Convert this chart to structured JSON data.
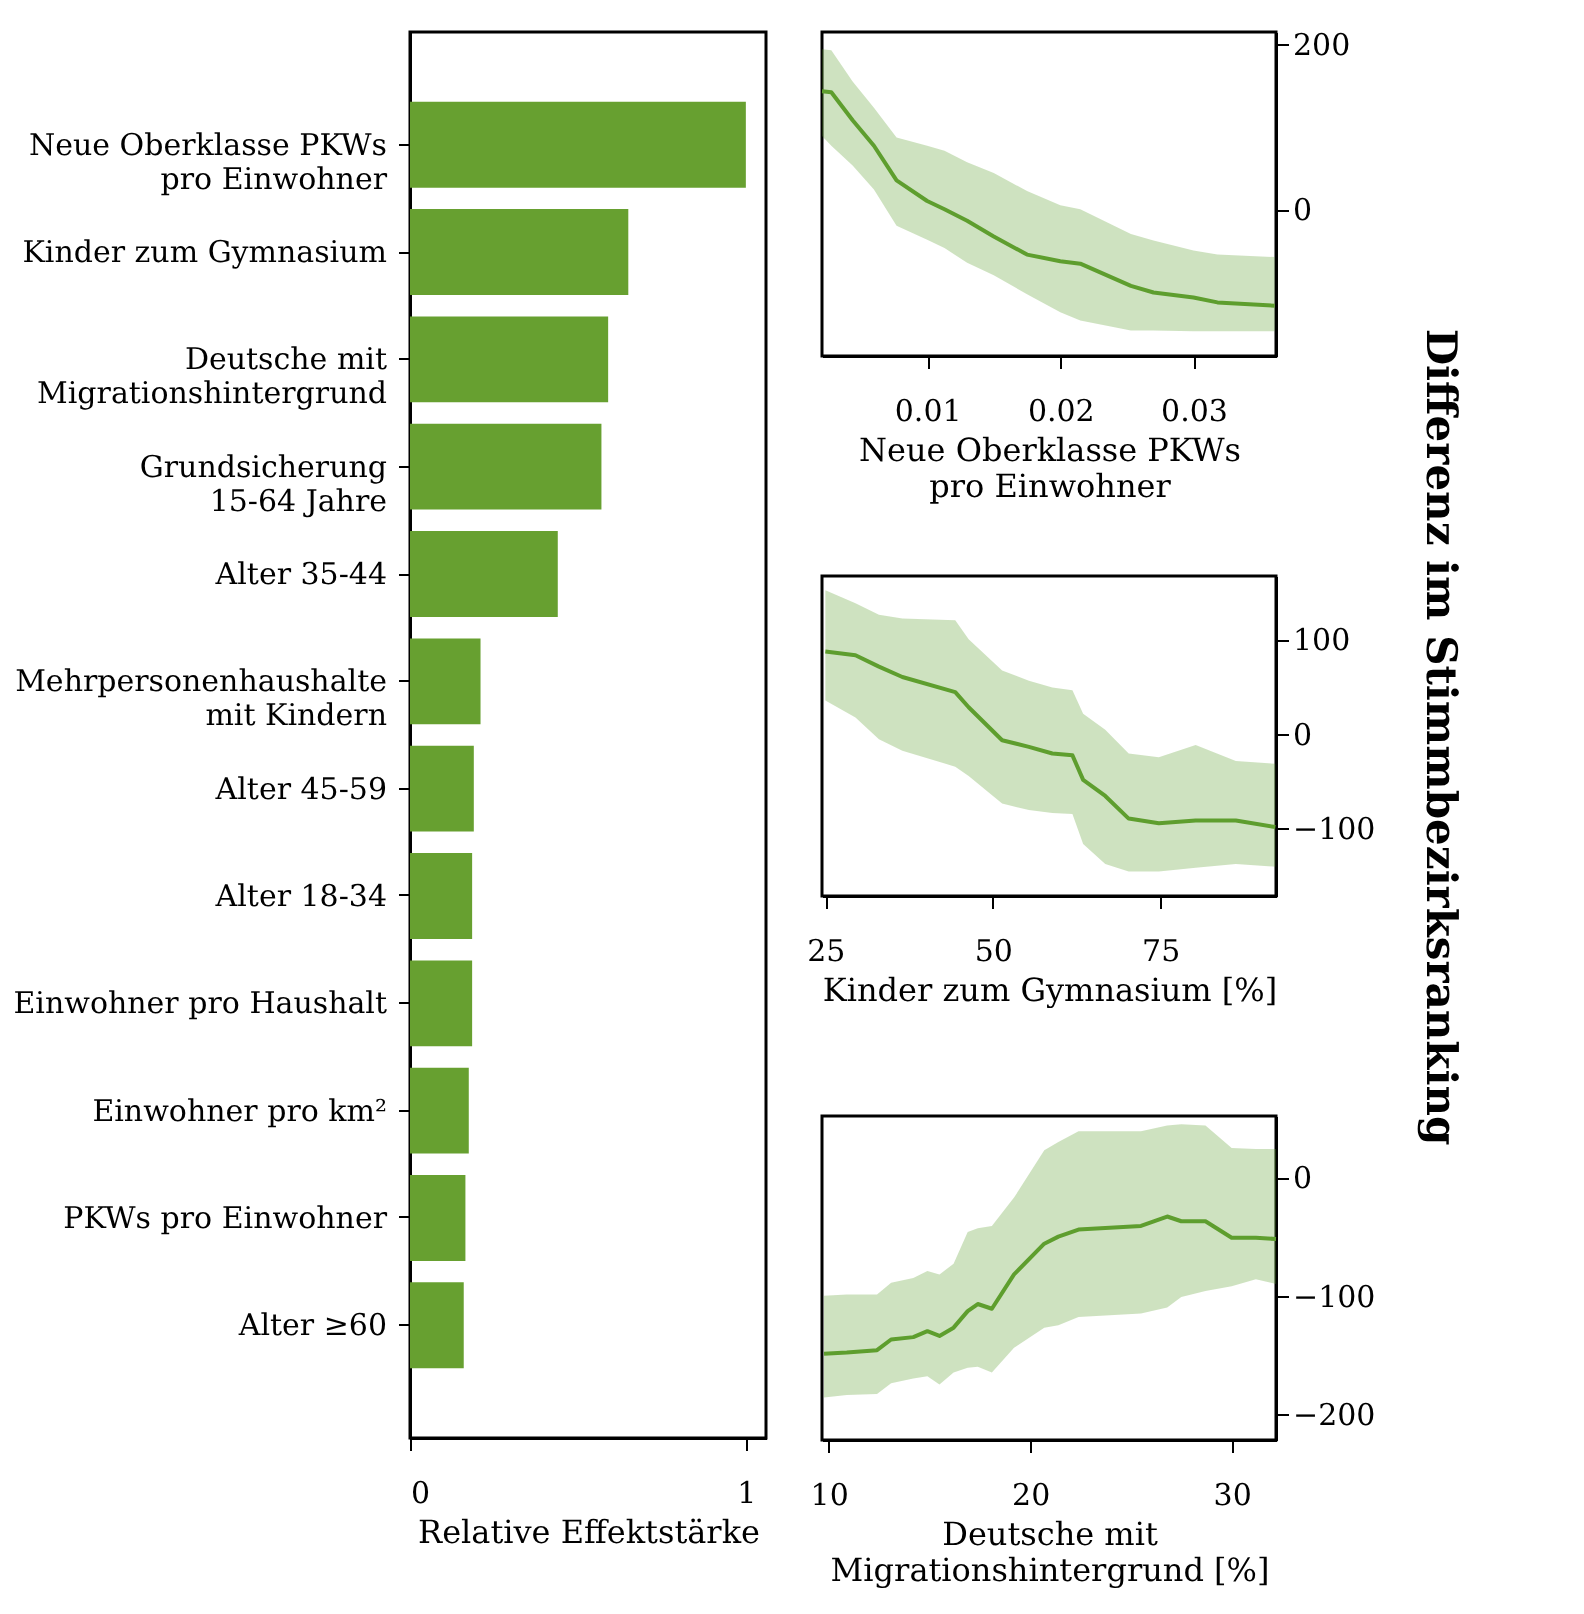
{
  "chart_data": [
    {
      "type": "bar",
      "orientation": "horizontal",
      "categories": [
        "Neue Oberklasse PKWs\npro Einwohner",
        "Kinder zum Gymnasium",
        "Deutsche mit\nMigrationshintergrund",
        "Grundsicherung\n15-64 Jahre",
        "Alter 35-44",
        "Mehrpersonenhaushalte\nmit Kindern",
        "Alter 45-59",
        "Alter 18-34",
        "Einwohner pro Haushalt",
        "Einwohner pro km²",
        "PKWs pro Einwohner",
        "Alter ≥60"
      ],
      "values": [
        1.0,
        0.65,
        0.59,
        0.57,
        0.44,
        0.21,
        0.19,
        0.185,
        0.185,
        0.175,
        0.165,
        0.16
      ],
      "color": "#67a030",
      "xlim": [
        0,
        1.06
      ],
      "xticks": [
        0,
        1
      ],
      "xlabel": "Relative Effektstärke"
    },
    {
      "type": "line",
      "xlabel": "Neue Oberklasse PKWs\npro Einwohner",
      "xlim": [
        0.0021,
        0.0362
      ],
      "xticks": [
        0.01,
        0.02,
        0.03
      ],
      "ylim": [
        -178,
        215
      ],
      "yticks": [
        0,
        200
      ],
      "x": [
        0.0021,
        0.0028,
        0.0044,
        0.006,
        0.0077,
        0.01,
        0.0113,
        0.013,
        0.015,
        0.0175,
        0.02,
        0.0215,
        0.0253,
        0.027,
        0.03,
        0.0318,
        0.0361
      ],
      "series": [
        {
          "color": "#5e9e2e",
          "values": [
            143,
            142,
            108,
            77,
            35,
            10,
            0,
            -14,
            -33,
            -55,
            -63,
            -66,
            -93,
            -101,
            -107,
            -113,
            -117
          ],
          "lower": [
            89,
            77,
            53,
            24,
            -20,
            -37,
            -47,
            -65,
            -80,
            -103,
            -125,
            -135,
            -147,
            -147,
            -148,
            -148,
            -148
          ],
          "upper": [
            194,
            193,
            155,
            123,
            87,
            77,
            71,
            57,
            44,
            22,
            5,
            0,
            -30,
            -38,
            -50,
            -55,
            -58
          ]
        }
      ]
    },
    {
      "type": "line",
      "xlabel": "Kinder zum Gymnasium [%]",
      "ylabel": "Differenz im Stimmbezirksranking",
      "xlim": [
        24.5,
        92.3
      ],
      "xticks": [
        25,
        50,
        75
      ],
      "ylim": [
        -172,
        167
      ],
      "yticks": [
        -100,
        0,
        100
      ],
      "x": [
        25,
        29.5,
        33,
        36.5,
        44.4,
        46.4,
        51.4,
        55.4,
        58.9,
        61.9,
        63.5,
        66.8,
        70.3,
        74.8,
        80.3,
        86.3,
        92.2
      ],
      "series": [
        {
          "color": "#5e9e2e",
          "values": [
            87,
            83,
            71,
            60,
            44,
            28,
            -7,
            -14,
            -21,
            -23,
            -49,
            -66,
            -90,
            -95,
            -92,
            -92,
            -99
          ],
          "lower": [
            35,
            17,
            -6,
            -18,
            -35,
            -45,
            -74,
            -81,
            -84,
            -85,
            -117,
            -138,
            -146,
            -146,
            -142,
            -138,
            -141
          ],
          "upper": [
            152,
            138,
            126,
            122,
            120,
            100,
            67,
            56,
            49,
            46,
            21,
            4,
            -21,
            -25,
            -12,
            -29,
            -32
          ]
        }
      ]
    },
    {
      "type": "line",
      "xlabel": "Deutsche mit\nMigrationshintergrund [%]",
      "xlim": [
        9.67,
        32.2
      ],
      "xticks": [
        10,
        20,
        30
      ],
      "ylim": [
        -222,
        52
      ],
      "yticks": [
        -200,
        -100,
        0
      ],
      "x": [
        9.77,
        10.9,
        12.4,
        13.1,
        14.2,
        14.9,
        15.5,
        16.2,
        16.9,
        17.4,
        18.1,
        19.2,
        20.7,
        21.4,
        22.4,
        25.5,
        26.8,
        27.5,
        28.7,
        30,
        31.2,
        32.2
      ],
      "series": [
        {
          "color": "#5e9e2e",
          "values": [
            -149,
            -148,
            -146,
            -137,
            -135,
            -130,
            -134,
            -127,
            -113,
            -107,
            -111,
            -82,
            -56,
            -50,
            -44,
            -41,
            -33,
            -37,
            -37,
            -51,
            -51,
            -52
          ],
          "lower": [
            -186,
            -184,
            -183,
            -174,
            -170,
            -168,
            -175,
            -165,
            -161,
            -160,
            -165,
            -144,
            -127,
            -125,
            -118,
            -115,
            -110,
            -101,
            -96,
            -92,
            -86,
            -90
          ],
          "upper": [
            -100,
            -99,
            -99,
            -89,
            -85,
            -79,
            -82,
            -73,
            -46,
            -43,
            -41,
            -17,
            23,
            30,
            39,
            39,
            44,
            45,
            44,
            25,
            24,
            24
          ]
        }
      ]
    }
  ]
}
